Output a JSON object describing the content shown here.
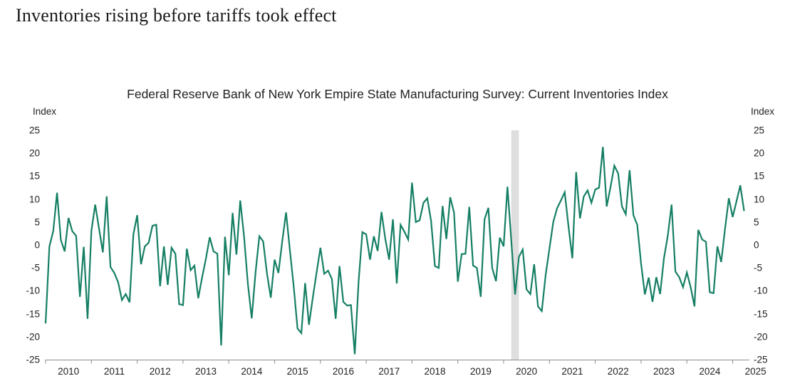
{
  "page": {
    "title": "Inventories rising before tariffs took effect"
  },
  "chart_data": {
    "type": "line",
    "title": "Federal Reserve Bank of New York Empire State Manufacturing Survey: Current Inventories Index",
    "ylabel_left": "Index",
    "ylabel_right": "Index",
    "ylim": [
      -25,
      25
    ],
    "yticks": [
      25,
      20,
      15,
      10,
      5,
      0,
      -5,
      -10,
      -15,
      -20,
      -25
    ],
    "grid": false,
    "legend": "none",
    "x_start": "2010-01",
    "x_end": "2025-04",
    "xtick_labels": [
      "2010",
      "2011",
      "2012",
      "2013",
      "2014",
      "2015",
      "2016",
      "2017",
      "2018",
      "2019",
      "2020",
      "2021",
      "2022",
      "2023",
      "2024",
      "2025"
    ],
    "line_color": "#157f64",
    "recession_band": {
      "start": "2020-03",
      "end": "2020-05",
      "color": "#dedede"
    },
    "series": [
      {
        "name": "Current Inventories Index",
        "frequency": "monthly",
        "values": [
          -17.1,
          -0.3,
          3.0,
          11.4,
          1.1,
          -1.4,
          5.9,
          3.0,
          2.0,
          -11.3,
          -0.4,
          -16.1,
          3.1,
          8.8,
          3.6,
          -1.6,
          10.6,
          -4.8,
          -6.1,
          -8.1,
          -12.0,
          -10.7,
          -12.5,
          2.3,
          6.5,
          -4.2,
          -0.3,
          0.5,
          4.2,
          4.4,
          -9.0,
          -0.3,
          -8.7,
          -0.6,
          -1.9,
          -12.9,
          -13.1,
          -0.8,
          -5.5,
          -4.5,
          -11.6,
          -7.1,
          -3.0,
          1.7,
          -1.4,
          -1.9,
          -21.9,
          1.8,
          -6.6,
          7.0,
          -2.1,
          9.7,
          1.8,
          -8.5,
          -16.0,
          -6.0,
          1.9,
          0.8,
          -6.2,
          -11.5,
          -3.2,
          -6.1,
          0.8,
          7.1,
          -1.1,
          -9.0,
          -18.2,
          -19.2,
          -8.3,
          -17.4,
          -11.5,
          -6.0,
          -0.6,
          -6.3,
          -5.6,
          -7.4,
          -16.1,
          -4.6,
          -12.4,
          -13.2,
          -13.1,
          -23.8,
          -8.0,
          2.8,
          2.3,
          -3.2,
          1.9,
          -1.3,
          7.2,
          1.3,
          -3.2,
          5.6,
          -8.4,
          4.4,
          2.9,
          1.2,
          13.6,
          5.0,
          5.4,
          9.2,
          10.2,
          5.2,
          -4.6,
          -5.0,
          8.5,
          1.3,
          10.4,
          7.1,
          -8.0,
          -2.0,
          -1.9,
          8.3,
          -4.5,
          -5.0,
          -11.3,
          5.6,
          8.1,
          -5.0,
          -7.9,
          1.6,
          -0.3,
          12.7,
          1.0,
          -10.8,
          -2.6,
          -1.0,
          -9.7,
          -10.7,
          -4.2,
          -13.4,
          -14.4,
          -6.6,
          -0.8,
          5.0,
          8.0,
          9.7,
          11.5,
          4.0,
          -2.9,
          15.9,
          5.8,
          10.6,
          11.9,
          9.2,
          12.1,
          12.5,
          21.4,
          8.4,
          12.6,
          17.3,
          15.6,
          8.4,
          6.7,
          16.3,
          6.5,
          4.4,
          -4.0,
          -10.8,
          -7.1,
          -12.4,
          -7.0,
          -10.7,
          -2.9,
          2.0,
          8.8,
          -5.8,
          -7.0,
          -9.2,
          -6.0,
          -9.2,
          -13.4,
          3.3,
          1.2,
          0.7,
          -10.3,
          -10.5,
          -0.3,
          -3.7,
          3.5,
          10.2,
          6.1,
          9.5,
          13.0,
          7.4
        ]
      }
    ]
  }
}
